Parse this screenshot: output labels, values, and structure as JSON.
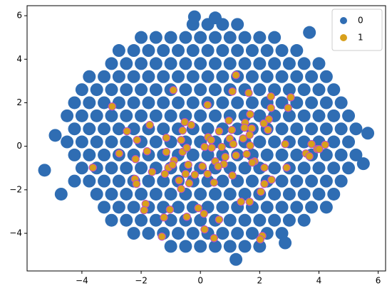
{
  "chart_data": {
    "type": "scatter",
    "xlim": [
      -5.85,
      6.25
    ],
    "ylim": [
      -5.73,
      6.46
    ],
    "xticks": [
      {
        "value": -4,
        "label": "−4"
      },
      {
        "value": -2,
        "label": "−2"
      },
      0,
      2,
      4,
      6
    ],
    "yticks": [
      {
        "value": -4,
        "label": "−4"
      },
      {
        "value": -2,
        "label": "−2"
      },
      0,
      2,
      4,
      6
    ],
    "grid": false,
    "legend": "upper right",
    "series": [
      {
        "name": "0",
        "color": "#2f6db3",
        "x": [
          -1,
          -0.5,
          0,
          0.5,
          1,
          1.5,
          2,
          -2.25,
          -1.75,
          -1.25,
          -0.75,
          -0.25,
          0.25,
          0.75,
          1.25,
          1.75,
          2.25,
          2.75,
          -3,
          -2.5,
          -2,
          -1.5,
          -1,
          -0.5,
          0,
          0.5,
          1,
          1.5,
          2,
          2.5,
          3,
          3.5,
          -3.25,
          -2.75,
          -2.25,
          -1.75,
          -1.25,
          -0.75,
          -0.25,
          0.25,
          0.75,
          1.25,
          1.75,
          2.25,
          2.75,
          3.25,
          3.75,
          4.25,
          -3.5,
          -3,
          -2.5,
          -2,
          -1.5,
          -1,
          -0.5,
          0,
          0.5,
          1,
          1.5,
          2,
          2.5,
          3,
          3.5,
          4,
          4.5,
          -4.25,
          -3.75,
          -3.25,
          -2.75,
          -2.25,
          -1.75,
          -1.25,
          -0.75,
          -0.25,
          0.25,
          0.75,
          1.25,
          1.75,
          2.25,
          2.75,
          3.25,
          3.75,
          4.25,
          4.75,
          -4,
          -3.5,
          -3,
          -2.5,
          -2,
          -1.5,
          -1,
          -0.5,
          0,
          0.5,
          1,
          1.5,
          2,
          2.5,
          3,
          3.5,
          4,
          4.5,
          5,
          -4.25,
          -3.75,
          -3.25,
          -2.75,
          -2.25,
          -1.75,
          -1.25,
          -0.75,
          -0.25,
          0.25,
          0.75,
          1.25,
          1.75,
          2.25,
          2.75,
          3.25,
          3.75,
          4.25,
          4.75,
          5.25,
          -4.5,
          -4,
          -3.5,
          -3,
          -2.5,
          -2,
          -1.5,
          -1,
          -0.5,
          0,
          0.5,
          1,
          1.5,
          2,
          2.5,
          3,
          3.5,
          4,
          4.5,
          5,
          -4.25,
          -3.75,
          -3.25,
          -2.75,
          -2.25,
          -1.75,
          -1.25,
          -0.75,
          -0.25,
          0.25,
          0.75,
          1.25,
          1.75,
          2.25,
          2.75,
          3.25,
          3.75,
          4.25,
          4.75,
          5.25,
          -4.5,
          -4,
          -3.5,
          -3,
          -2.5,
          -2,
          -1.5,
          -1,
          -0.5,
          0,
          0.5,
          1,
          1.5,
          2,
          2.5,
          3,
          3.5,
          4,
          4.5,
          5,
          -4.25,
          -3.75,
          -3.25,
          -2.75,
          -2.25,
          -1.75,
          -1.25,
          -0.75,
          -0.25,
          0.25,
          0.75,
          1.25,
          1.75,
          2.25,
          2.75,
          3.25,
          3.75,
          4.25,
          4.75,
          -4,
          -3.5,
          -3,
          -2.5,
          -2,
          -1.5,
          -1,
          -0.5,
          0,
          0.5,
          1,
          1.5,
          2,
          2.5,
          3,
          3.5,
          4,
          4.5,
          -3.75,
          -3.25,
          -2.75,
          -2.25,
          -1.75,
          -1.25,
          -0.75,
          -0.25,
          0.25,
          0.75,
          1.25,
          1.75,
          2.25,
          2.75,
          3.25,
          3.75,
          4.25,
          -3,
          -2.5,
          -2,
          -1.5,
          -1,
          -0.5,
          0,
          0.5,
          1,
          1.5,
          2,
          2.5,
          3,
          3.5,
          4,
          -2.75,
          -2.25,
          -1.75,
          -1.25,
          -0.75,
          -0.25,
          0.25,
          0.75,
          1.25,
          1.75,
          2.25,
          2.75,
          3.25,
          -2,
          -1.5,
          -1,
          -0.5,
          0,
          0.5,
          1,
          1.5,
          2,
          2.5,
          -0.25,
          0.25,
          0.75,
          1.25,
          3.68,
          -5.26,
          5.65,
          -4.9,
          5.5,
          -0.2,
          0.5,
          2.86,
          1.2,
          -4.7
        ],
        "y": [
          -4.6,
          -4.6,
          -4.6,
          -4.6,
          -4.6,
          -4.6,
          -4.6,
          -4,
          -4,
          -4,
          -4,
          -4,
          -4,
          -4,
          -4,
          -4,
          -4,
          -4,
          -3.4,
          -3.4,
          -3.4,
          -3.4,
          -3.4,
          -3.4,
          -3.4,
          -3.4,
          -3.4,
          -3.4,
          -3.4,
          -3.4,
          -3.4,
          -3.4,
          -2.8,
          -2.8,
          -2.8,
          -2.8,
          -2.8,
          -2.8,
          -2.8,
          -2.8,
          -2.8,
          -2.8,
          -2.8,
          -2.8,
          -2.8,
          -2.8,
          -2.8,
          -2.8,
          -2.2,
          -2.2,
          -2.2,
          -2.2,
          -2.2,
          -2.2,
          -2.2,
          -2.2,
          -2.2,
          -2.2,
          -2.2,
          -2.2,
          -2.2,
          -2.2,
          -2.2,
          -2.2,
          -2.2,
          -1.6,
          -1.6,
          -1.6,
          -1.6,
          -1.6,
          -1.6,
          -1.6,
          -1.6,
          -1.6,
          -1.6,
          -1.6,
          -1.6,
          -1.6,
          -1.6,
          -1.6,
          -1.6,
          -1.6,
          -1.6,
          -1.6,
          -1,
          -1,
          -1,
          -1,
          -1,
          -1,
          -1,
          -1,
          -1,
          -1,
          -1,
          -1,
          -1,
          -1,
          -1,
          -1,
          -1,
          -1,
          -1,
          -0.4,
          -0.4,
          -0.4,
          -0.4,
          -0.4,
          -0.4,
          -0.4,
          -0.4,
          -0.4,
          -0.4,
          -0.4,
          -0.4,
          -0.4,
          -0.4,
          -0.4,
          -0.4,
          -0.4,
          -0.4,
          -0.4,
          -0.4,
          0.2,
          0.2,
          0.2,
          0.2,
          0.2,
          0.2,
          0.2,
          0.2,
          0.2,
          0.2,
          0.2,
          0.2,
          0.2,
          0.2,
          0.2,
          0.2,
          0.2,
          0.2,
          0.2,
          0.2,
          0.8,
          0.8,
          0.8,
          0.8,
          0.8,
          0.8,
          0.8,
          0.8,
          0.8,
          0.8,
          0.8,
          0.8,
          0.8,
          0.8,
          0.8,
          0.8,
          0.8,
          0.8,
          0.8,
          0.8,
          1.4,
          1.4,
          1.4,
          1.4,
          1.4,
          1.4,
          1.4,
          1.4,
          1.4,
          1.4,
          1.4,
          1.4,
          1.4,
          1.4,
          1.4,
          1.4,
          1.4,
          1.4,
          1.4,
          1.4,
          2,
          2,
          2,
          2,
          2,
          2,
          2,
          2,
          2,
          2,
          2,
          2,
          2,
          2,
          2,
          2,
          2,
          2,
          2,
          2.6,
          2.6,
          2.6,
          2.6,
          2.6,
          2.6,
          2.6,
          2.6,
          2.6,
          2.6,
          2.6,
          2.6,
          2.6,
          2.6,
          2.6,
          2.6,
          2.6,
          2.6,
          3.2,
          3.2,
          3.2,
          3.2,
          3.2,
          3.2,
          3.2,
          3.2,
          3.2,
          3.2,
          3.2,
          3.2,
          3.2,
          3.2,
          3.2,
          3.2,
          3.2,
          3.8,
          3.8,
          3.8,
          3.8,
          3.8,
          3.8,
          3.8,
          3.8,
          3.8,
          3.8,
          3.8,
          3.8,
          3.8,
          3.8,
          3.8,
          4.4,
          4.4,
          4.4,
          4.4,
          4.4,
          4.4,
          4.4,
          4.4,
          4.4,
          4.4,
          4.4,
          4.4,
          4.4,
          5,
          5,
          5,
          5,
          5,
          5,
          5,
          5,
          5,
          5,
          5.6,
          5.6,
          5.6,
          5.6,
          5.23,
          -1.1,
          0.6,
          0.5,
          -0.8,
          5.95,
          5.9,
          -4.44,
          -5.2,
          -2.2
        ]
      },
      {
        "name": "1",
        "color": "#d8a01c",
        "edgecolor": "#c04ac8",
        "x": [
          1.2,
          -0.91,
          1.08,
          1.63,
          2.38,
          3.05,
          -2.98,
          0.24,
          2.38,
          2.96,
          1.68,
          0.96,
          -0.53,
          -0.31,
          1.51,
          2.31,
          2.14,
          -1.71,
          -2.48,
          -0.6,
          0.63,
          1.06,
          1.49,
          1.73,
          2.28,
          -2.14,
          -1.15,
          -0.65,
          0.26,
          0.36,
          0.99,
          1.44,
          1.66,
          2.86,
          3.75,
          3.94,
          4.21,
          0.14,
          0.38,
          0.72,
          1.11,
          1.68,
          -2.74,
          -1.8,
          -1.15,
          -0.6,
          -0.46,
          0.84,
          1.2,
          1.56,
          1.83,
          3.56,
          3.68,
          4.01,
          -2.19,
          -0.89,
          0.5,
          0.79,
          -3.63,
          -1.08,
          -0.94,
          -0.41,
          0.07,
          0.6,
          1.75,
          2.16,
          2.91,
          -1.63,
          -1.2,
          -0.5,
          0.24,
          1.08,
          -2.21,
          -0.72,
          -0.19,
          2.4,
          -2.16,
          -0.38,
          0.46,
          2.16,
          2.04,
          -0.65,
          1.37,
          1.66,
          -1.85,
          -1.9,
          -1.03,
          -0.07,
          0.12,
          -1.23,
          -0.46,
          0.63,
          -1.3,
          0.14,
          0.46,
          2.09,
          2.02
        ],
        "y": [
          3.27,
          2.58,
          2.52,
          2.45,
          2.29,
          2.25,
          1.83,
          1.9,
          1.76,
          1.76,
          1.47,
          1.18,
          1.11,
          0.98,
          1.08,
          1.24,
          1.05,
          0.98,
          0.69,
          0.72,
          0.69,
          0.75,
          0.85,
          0.82,
          0.75,
          0.29,
          0.39,
          0.29,
          0.42,
          0.29,
          0.36,
          0.36,
          0.52,
          0.1,
          0.1,
          -0.13,
          0.07,
          -0.03,
          -0.07,
          -0.03,
          0.1,
          0.03,
          -0.33,
          -0.23,
          -0.26,
          -0.26,
          -0.07,
          -0.49,
          -0.42,
          -0.36,
          -0.69,
          -0.33,
          -0.46,
          -0.13,
          -0.59,
          -0.65,
          -0.69,
          -0.82,
          -0.98,
          -0.98,
          -0.85,
          -0.85,
          -0.92,
          -0.92,
          -0.75,
          -0.98,
          -0.98,
          -1.18,
          -1.27,
          -1.27,
          -1.27,
          -1.34,
          -1.5,
          -1.57,
          -1.31,
          -1.54,
          -1.73,
          -1.7,
          -1.67,
          -1.73,
          -2.09,
          -1.96,
          -2.55,
          -2.55,
          -2.65,
          -2.94,
          -2.91,
          -2.84,
          -3.1,
          -3.27,
          -3.24,
          -3.37,
          -4.15,
          -3.82,
          -4.22,
          -4.12,
          -4.28
        ]
      }
    ]
  }
}
